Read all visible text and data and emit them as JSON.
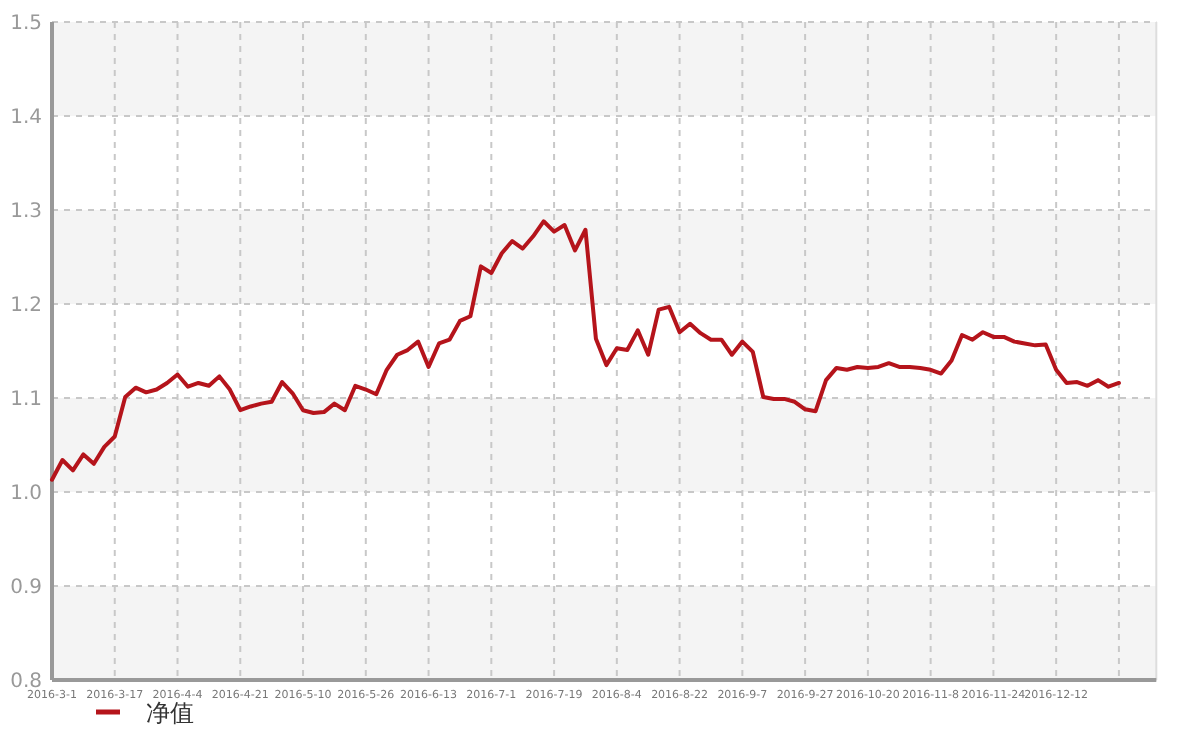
{
  "chart_data": {
    "type": "line",
    "categories": [
      "2016-3-1",
      null,
      null,
      null,
      null,
      null,
      "2016-3-17",
      null,
      null,
      null,
      null,
      null,
      "2016-4-4",
      null,
      null,
      null,
      null,
      null,
      "2016-4-21",
      null,
      null,
      null,
      null,
      null,
      "2016-5-10",
      null,
      null,
      null,
      null,
      null,
      "2016-5-26",
      null,
      null,
      null,
      null,
      null,
      "2016-6-13",
      null,
      null,
      null,
      null,
      null,
      "2016-7-1",
      null,
      null,
      null,
      null,
      null,
      "2016-7-19",
      null,
      null,
      null,
      null,
      null,
      "2016-8-4",
      null,
      null,
      null,
      null,
      null,
      "2016-8-22",
      null,
      null,
      null,
      null,
      null,
      "2016-9-7",
      null,
      null,
      null,
      null,
      null,
      "2016-9-27",
      null,
      null,
      null,
      null,
      null,
      "2016-10-20",
      null,
      null,
      null,
      null,
      null,
      "2016-11-8",
      null,
      null,
      null,
      null,
      null,
      "2016-11-24",
      null,
      null,
      null,
      null,
      null,
      "2016-12-12",
      null,
      null,
      null,
      null,
      null,
      null,
      null,
      null,
      null
    ],
    "series": [
      {
        "name": "净值",
        "color": "#b5141b",
        "values": [
          1.013,
          1.034,
          1.023,
          1.04,
          1.03,
          1.048,
          1.059,
          1.101,
          1.111,
          1.106,
          1.109,
          1.116,
          1.125,
          1.112,
          1.116,
          1.113,
          1.123,
          1.109,
          1.087,
          1.091,
          1.094,
          1.096,
          1.117,
          1.105,
          1.087,
          1.084,
          1.085,
          1.094,
          1.087,
          1.113,
          1.109,
          1.104,
          1.13,
          1.146,
          1.151,
          1.16,
          1.133,
          1.158,
          1.162,
          1.182,
          1.187,
          1.24,
          1.233,
          1.254,
          1.267,
          1.259,
          1.272,
          1.288,
          1.277,
          1.284,
          1.257,
          1.279,
          1.163,
          1.135,
          1.153,
          1.151,
          1.172,
          1.146,
          1.194,
          1.197,
          1.17,
          1.179,
          1.169,
          1.162,
          1.162,
          1.146,
          1.16,
          1.149,
          1.101,
          1.099,
          1.099,
          1.096,
          1.088,
          1.086,
          1.119,
          1.132,
          1.13,
          1.133,
          1.132,
          1.133,
          1.137,
          1.133,
          1.133,
          1.132,
          1.13,
          1.126,
          1.14,
          1.167,
          1.162,
          1.17,
          1.165,
          1.165,
          1.16,
          1.158,
          1.156,
          1.157,
          1.13,
          1.116,
          1.117,
          1.113,
          1.119,
          1.112,
          1.116,
          null,
          null,
          null
        ]
      }
    ],
    "ylim": [
      0.8,
      1.5
    ],
    "yticks": [
      0.8,
      0.9,
      {
        "value": 1.0,
        "label": "1.0"
      },
      1.1,
      1.2,
      1.3,
      1.4,
      1.5
    ],
    "bands": [
      {
        "axis": "y",
        "from": 0.8,
        "to": 0.9,
        "color": "#f4f4f4"
      },
      {
        "axis": "y",
        "from": 1.0,
        "to": 1.1,
        "color": "#f4f4f4"
      },
      {
        "axis": "y",
        "from": 1.2,
        "to": 1.3,
        "color": "#f4f4f4"
      },
      {
        "axis": "y",
        "from": 1.4,
        "to": 1.5,
        "color": "#f4f4f4"
      }
    ],
    "grid": true,
    "legend": "bottom",
    "marker": "none",
    "line_style": "solid"
  }
}
